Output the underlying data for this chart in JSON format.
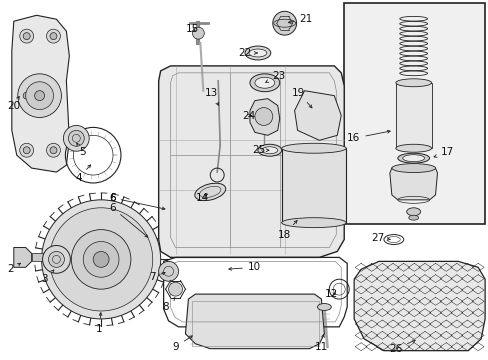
{
  "bg_color": "#ffffff",
  "box_bg": "#eeeeee",
  "line_color": "#222222",
  "label_color": "#111111",
  "fig_width": 4.89,
  "fig_height": 3.6,
  "dpi": 100
}
